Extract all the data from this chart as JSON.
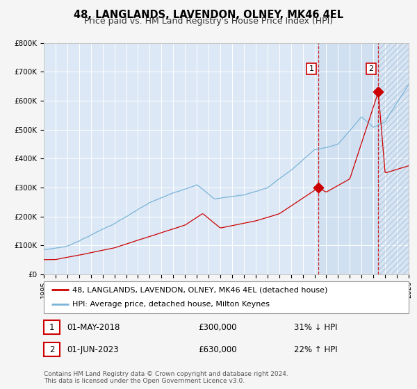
{
  "title": "48, LANGLANDS, LAVENDON, OLNEY, MK46 4EL",
  "subtitle": "Price paid vs. HM Land Registry's House Price Index (HPI)",
  "ylim": [
    0,
    800000
  ],
  "yticks": [
    0,
    100000,
    200000,
    300000,
    400000,
    500000,
    600000,
    700000,
    800000
  ],
  "ytick_labels": [
    "£0",
    "£100K",
    "£200K",
    "£300K",
    "£400K",
    "£500K",
    "£600K",
    "£700K",
    "£800K"
  ],
  "hpi_color": "#7ab4d8",
  "price_color": "#cc0000",
  "sale1_year": 2018.33,
  "sale1_price": 300000,
  "sale2_year": 2023.42,
  "sale2_price": 630000,
  "legend_price_label": "48, LANGLANDS, LAVENDON, OLNEY, MK46 4EL (detached house)",
  "legend_hpi_label": "HPI: Average price, detached house, Milton Keynes",
  "table_row1": [
    "1",
    "01-MAY-2018",
    "£300,000",
    "31% ↓ HPI"
  ],
  "table_row2": [
    "2",
    "01-JUN-2023",
    "£630,000",
    "22% ↑ HPI"
  ],
  "footnote": "Contains HM Land Registry data © Crown copyright and database right 2024.\nThis data is licensed under the Open Government Licence v3.0.",
  "bg_color": "#f5f5f5",
  "plot_bg_color": "#dce8f5",
  "grid_color": "#ffffff",
  "shade_color": "#ccddf0",
  "hatch_edge_color": "#b8cce0",
  "title_fontsize": 10.5,
  "subtitle_fontsize": 9,
  "tick_fontsize": 7.5,
  "legend_fontsize": 8,
  "table_fontsize": 8.5,
  "footnote_fontsize": 6.5
}
